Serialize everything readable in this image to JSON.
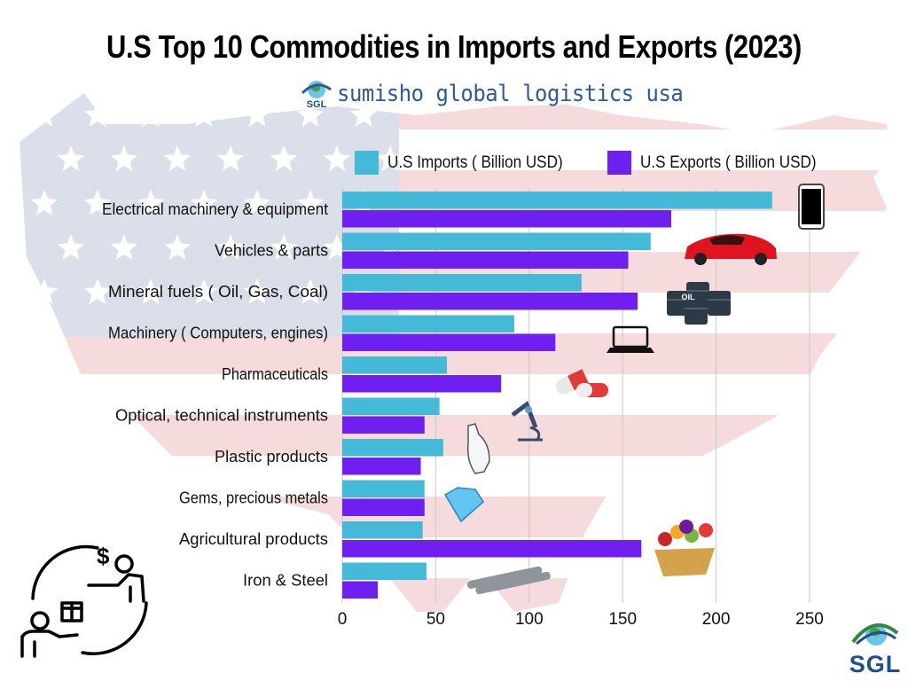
{
  "title": "U.S Top 10 Commodities in Imports and Exports (2023)",
  "brand": {
    "name": "sumisho global logistics usa",
    "logo_abbr": "SGL",
    "logo_icon": "globe-swirl-icon"
  },
  "footer_logo": {
    "abbr": "SGL",
    "icon": "globe-swirl-icon"
  },
  "colors": {
    "imports": "#44b9d8",
    "exports": "#6f1ff0",
    "brand": "#2d5a9a"
  },
  "decorations": {
    "background": "us-flag-map-icon",
    "corner_illustration": "trade-exchange-people-icon",
    "item_icons": [
      "smartphone-icon",
      "sports-car-icon",
      "oil-barrels-icon",
      "laptop-icon",
      "pill-capsules-icon",
      "microscope-icon",
      "plastic-bottle-icon",
      "diamond-icon",
      "fruit-basket-icon",
      "steel-pipes-icon"
    ]
  },
  "chart_data": {
    "type": "bar",
    "orientation": "horizontal",
    "categories": [
      "Electrical machinery & equipment",
      "Vehicles & parts",
      "Mineral fuels ( Oil, Gas, Coal)",
      "Machinery ( Computers, engines)",
      "Pharmaceuticals",
      "Optical, technical instruments",
      "Plastic products",
      "Gems, precious metals",
      "Agricultural products",
      "Iron & Steel"
    ],
    "series": [
      {
        "name": "U.S Imports ( Billion USD)",
        "values": [
          230,
          165,
          128,
          92,
          56,
          52,
          54,
          44,
          43,
          45
        ]
      },
      {
        "name": "U.S Exports ( Billion USD)",
        "values": [
          176,
          153,
          158,
          114,
          85,
          44,
          42,
          44,
          160,
          19
        ]
      }
    ],
    "xlim": [
      0,
      250
    ],
    "xticks": [
      "0",
      "50",
      "100",
      "150",
      "200",
      "250"
    ],
    "grid": "vertical",
    "legend": "top"
  }
}
